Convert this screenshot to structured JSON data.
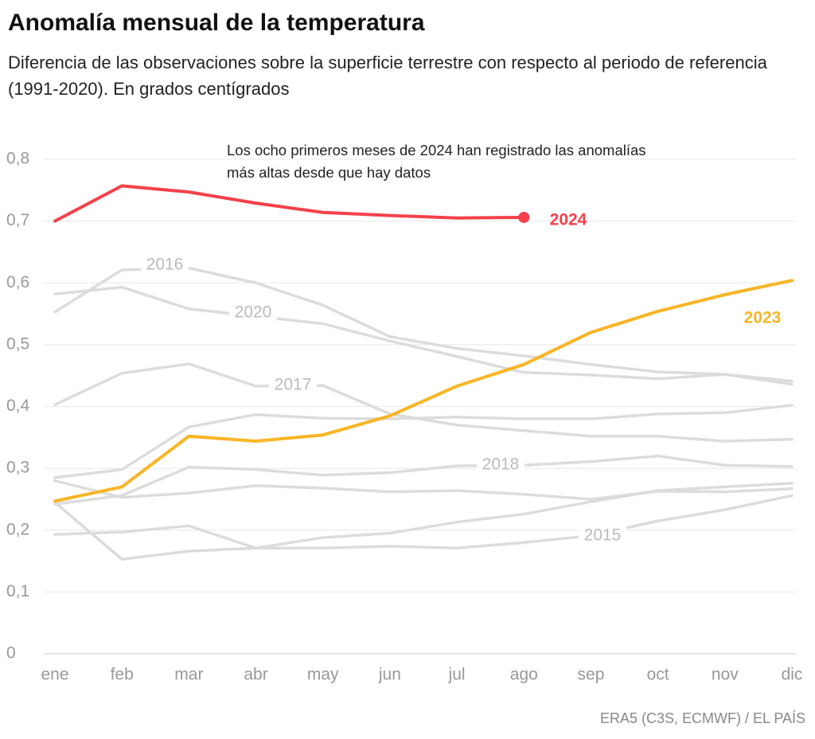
{
  "chart_data": {
    "type": "line",
    "title": "Anomalía mensual de la temperatura",
    "subtitle": "Diferencia de las observaciones sobre la superficie terrestre con respecto al periodo de referencia (1991-2020). En grados centígrados",
    "annotation": "Los ocho primeros meses de 2024 han registrado las anomalías más altas desde que hay datos",
    "source": "ERA5 (C3S, ECMWF) / EL PAÍS",
    "categories": [
      "ene",
      "feb",
      "mar",
      "abr",
      "may",
      "jun",
      "jul",
      "ago",
      "sep",
      "oct",
      "nov",
      "dic"
    ],
    "ylim": [
      0,
      0.8
    ],
    "yticks": [
      0,
      {
        "value": 0.1,
        "label": "0,1"
      },
      {
        "value": 0.2,
        "label": "0,2"
      },
      {
        "value": 0.3,
        "label": "0,3"
      },
      {
        "value": 0.4,
        "label": "0,4"
      },
      {
        "value": 0.5,
        "label": "0,5"
      },
      {
        "value": 0.6,
        "label": "0,6"
      },
      {
        "value": 0.7,
        "label": "0,7"
      },
      {
        "value": 0.8,
        "label": "0,8"
      }
    ],
    "grid": true,
    "series": [
      {
        "name": "2016",
        "color": "#dcdcdc",
        "values": [
          0.553,
          0.621,
          0.624,
          0.6,
          0.564,
          0.513,
          0.494,
          0.482,
          0.468,
          0.456,
          0.452,
          0.436
        ]
      },
      {
        "name": "2020",
        "color": "#dcdcdc",
        "values": [
          0.582,
          0.593,
          0.558,
          0.546,
          0.534,
          0.506,
          0.481,
          0.455,
          0.451,
          0.445,
          0.452,
          0.441
        ]
      },
      {
        "name": "2017",
        "color": "#dcdcdc",
        "values": [
          0.403,
          0.454,
          0.469,
          0.433,
          0.434,
          0.388,
          0.37,
          0.361,
          0.352,
          0.352,
          0.344,
          0.347
        ]
      },
      {
        "color": "#dcdcdc",
        "values": [
          0.285,
          0.298,
          0.367,
          0.387,
          0.381,
          0.38,
          0.383,
          0.38,
          0.38,
          0.388,
          0.39,
          0.402
        ]
      },
      {
        "name": "2018",
        "color": "#dcdcdc",
        "values": [
          0.242,
          0.256,
          0.302,
          0.298,
          0.289,
          0.293,
          0.304,
          0.305,
          0.311,
          0.32,
          0.305,
          0.303
        ]
      },
      {
        "color": "#dcdcdc",
        "values": [
          0.28,
          0.253,
          0.26,
          0.272,
          0.268,
          0.262,
          0.264,
          0.258,
          0.25,
          0.263,
          0.262,
          0.267
        ]
      },
      {
        "color": "#dcdcdc",
        "values": [
          0.245,
          0.153,
          0.166,
          0.171,
          0.188,
          0.195,
          0.213,
          0.226,
          0.246,
          0.264,
          0.27,
          0.276
        ]
      },
      {
        "name": "2015",
        "color": "#dcdcdc",
        "values": [
          0.193,
          0.197,
          0.207,
          0.171,
          0.171,
          0.174,
          0.171,
          0.18,
          0.191,
          0.215,
          0.233,
          0.256
        ]
      },
      {
        "name": "2023",
        "color": "#f8b526",
        "values": [
          0.247,
          0.27,
          0.352,
          0.344,
          0.354,
          0.385,
          0.433,
          0.468,
          0.52,
          0.554,
          0.581,
          0.604
        ]
      },
      {
        "name": "2024",
        "color": "#f5414a",
        "values": [
          0.7,
          0.757,
          0.747,
          0.729,
          0.714,
          0.709,
          0.705,
          0.706,
          null,
          null,
          null,
          null
        ]
      }
    ]
  }
}
